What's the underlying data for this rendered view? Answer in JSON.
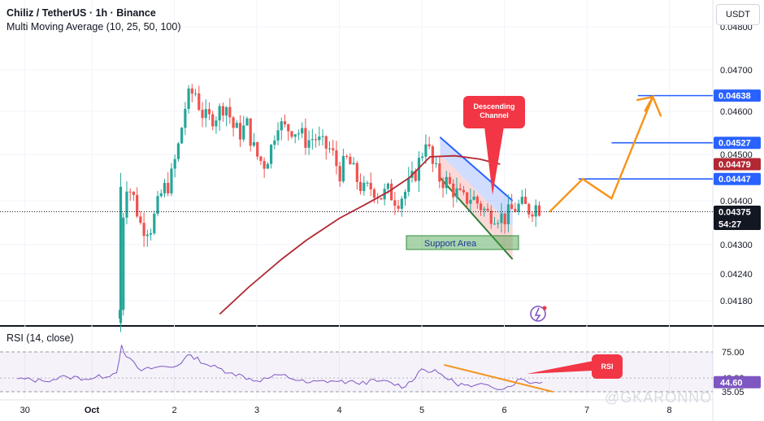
{
  "header": {
    "symbol_line": "Chiliz / TetherUS · 1h · Binance",
    "indicator_line": "Multi Moving Average (10, 25, 50, 100)",
    "rsi_label": "RSI (14, close)",
    "currency_button": "USDT"
  },
  "watermark": "@GKARONNO",
  "colors": {
    "up": "#26a69a",
    "down": "#ef5350",
    "ma": "#b22833",
    "projection": "#f7931a",
    "level": "#2962ff",
    "rsi_line": "#7e57c2",
    "support": "#43a047",
    "callout": "#f23645"
  },
  "chart_data": {
    "type": "candlestick",
    "y_ticks": [
      "0.04800",
      "0.04700",
      "0.04600",
      "0.04500",
      "0.04400",
      "0.04300",
      "0.04240",
      "0.04180"
    ],
    "x_ticks": [
      "30",
      "Oct",
      "2",
      "3",
      "4",
      "5",
      "6",
      "7",
      "8"
    ],
    "price_labels": [
      {
        "text": "0.04638",
        "value": 0.04638,
        "kind": "level"
      },
      {
        "text": "0.04527",
        "value": 0.04527,
        "kind": "level"
      },
      {
        "text": "0.04479",
        "value": 0.04479,
        "kind": "ma"
      },
      {
        "text": "0.04447",
        "value": 0.04447,
        "kind": "level"
      },
      {
        "text": "0.04375",
        "value": 0.04375,
        "kind": "last"
      }
    ],
    "countdown": "54:27",
    "horizontal_levels": [
      {
        "value": 0.04638,
        "from_day": 6.62
      },
      {
        "value": 0.04527,
        "from_day": 6.3
      },
      {
        "value": 0.04447,
        "from_day": 5.9
      }
    ],
    "close_series": [
      {
        "t": 0.34,
        "v": 0.0416
      },
      {
        "t": 0.38,
        "v": 0.0437
      },
      {
        "t": 0.42,
        "v": 0.0444
      },
      {
        "t": 0.5,
        "v": 0.0441
      },
      {
        "t": 0.6,
        "v": 0.0434
      },
      {
        "t": 0.72,
        "v": 0.0434
      },
      {
        "t": 0.85,
        "v": 0.0442
      },
      {
        "t": 0.95,
        "v": 0.0444
      },
      {
        "t": 1.05,
        "v": 0.0452
      },
      {
        "t": 1.15,
        "v": 0.0463
      },
      {
        "t": 1.25,
        "v": 0.0465
      },
      {
        "t": 1.32,
        "v": 0.046
      },
      {
        "t": 1.4,
        "v": 0.0458
      },
      {
        "t": 1.5,
        "v": 0.0459
      },
      {
        "t": 1.62,
        "v": 0.0462
      },
      {
        "t": 1.72,
        "v": 0.0456
      },
      {
        "t": 1.8,
        "v": 0.0455
      },
      {
        "t": 1.88,
        "v": 0.0457
      },
      {
        "t": 1.95,
        "v": 0.0452
      },
      {
        "t": 2.02,
        "v": 0.0449
      },
      {
        "t": 2.1,
        "v": 0.0448
      },
      {
        "t": 2.18,
        "v": 0.0452
      },
      {
        "t": 2.25,
        "v": 0.0458
      },
      {
        "t": 2.32,
        "v": 0.0456
      },
      {
        "t": 2.42,
        "v": 0.0456
      },
      {
        "t": 2.52,
        "v": 0.0455
      },
      {
        "t": 2.6,
        "v": 0.0453
      },
      {
        "t": 2.7,
        "v": 0.0454
      },
      {
        "t": 2.8,
        "v": 0.0452
      },
      {
        "t": 2.9,
        "v": 0.0451
      },
      {
        "t": 3.0,
        "v": 0.0446
      },
      {
        "t": 3.1,
        "v": 0.0449
      },
      {
        "t": 3.2,
        "v": 0.0445
      },
      {
        "t": 3.3,
        "v": 0.0442
      },
      {
        "t": 3.4,
        "v": 0.0443
      },
      {
        "t": 3.5,
        "v": 0.0441
      },
      {
        "t": 3.6,
        "v": 0.0442
      },
      {
        "t": 3.7,
        "v": 0.044
      },
      {
        "t": 3.8,
        "v": 0.0442
      },
      {
        "t": 3.9,
        "v": 0.0445
      },
      {
        "t": 4.0,
        "v": 0.045
      },
      {
        "t": 4.05,
        "v": 0.0454
      },
      {
        "t": 4.12,
        "v": 0.0448
      },
      {
        "t": 4.2,
        "v": 0.0445
      },
      {
        "t": 4.3,
        "v": 0.0444
      },
      {
        "t": 4.4,
        "v": 0.0442
      },
      {
        "t": 4.5,
        "v": 0.044
      },
      {
        "t": 4.6,
        "v": 0.0441
      },
      {
        "t": 4.7,
        "v": 0.0439
      },
      {
        "t": 4.8,
        "v": 0.0437
      },
      {
        "t": 4.9,
        "v": 0.0437
      },
      {
        "t": 5.0,
        "v": 0.0436
      },
      {
        "t": 5.1,
        "v": 0.0438
      },
      {
        "t": 5.2,
        "v": 0.0439
      },
      {
        "t": 5.3,
        "v": 0.0438
      },
      {
        "t": 5.4,
        "v": 0.0439
      },
      {
        "t": 5.46,
        "v": 0.04375
      }
    ],
    "moving_average": [
      {
        "t": 1.55,
        "v": 0.0415
      },
      {
        "t": 1.9,
        "v": 0.0421
      },
      {
        "t": 2.3,
        "v": 0.0427
      },
      {
        "t": 2.6,
        "v": 0.0431
      },
      {
        "t": 3.0,
        "v": 0.0436
      },
      {
        "t": 3.3,
        "v": 0.0439
      },
      {
        "t": 3.6,
        "v": 0.0442
      },
      {
        "t": 3.85,
        "v": 0.0445
      },
      {
        "t": 4.1,
        "v": 0.04495
      },
      {
        "t": 4.4,
        "v": 0.04497
      },
      {
        "t": 4.7,
        "v": 0.0449
      },
      {
        "t": 4.95,
        "v": 0.04479
      }
    ],
    "projection": [
      {
        "t": 5.55,
        "v": 0.04375
      },
      {
        "t": 5.95,
        "v": 0.04447
      },
      {
        "t": 6.3,
        "v": 0.04405
      },
      {
        "t": 6.8,
        "v": 0.04635
      },
      {
        "t": 6.9,
        "v": 0.04588
      }
    ],
    "channel": {
      "upper": [
        {
          "t": 4.22,
          "v": 0.0454
        },
        {
          "t": 5.1,
          "v": 0.044
        }
      ],
      "lower": [
        {
          "t": 4.22,
          "v": 0.0445
        },
        {
          "t": 5.1,
          "v": 0.0427
        }
      ]
    },
    "annotations": {
      "descending_channel": "Descending Channel",
      "support_area": "Support Area",
      "rsi_tag": "RSI"
    },
    "rsi": {
      "ticks": [
        "75.00",
        "48.82",
        "35.05"
      ],
      "current_label": "44.60",
      "values": [
        {
          "t": -0.9,
          "v": 48
        },
        {
          "t": -0.6,
          "v": 46
        },
        {
          "t": -0.3,
          "v": 50
        },
        {
          "t": 0.0,
          "v": 48
        },
        {
          "t": 0.3,
          "v": 54
        },
        {
          "t": 0.36,
          "v": 82
        },
        {
          "t": 0.42,
          "v": 70
        },
        {
          "t": 0.6,
          "v": 56
        },
        {
          "t": 0.8,
          "v": 60
        },
        {
          "t": 1.0,
          "v": 60
        },
        {
          "t": 1.2,
          "v": 72
        },
        {
          "t": 1.4,
          "v": 62
        },
        {
          "t": 1.7,
          "v": 54
        },
        {
          "t": 2.0,
          "v": 46
        },
        {
          "t": 2.3,
          "v": 52
        },
        {
          "t": 2.6,
          "v": 44
        },
        {
          "t": 2.9,
          "v": 46
        },
        {
          "t": 3.2,
          "v": 44
        },
        {
          "t": 3.5,
          "v": 46
        },
        {
          "t": 3.8,
          "v": 40
        },
        {
          "t": 4.0,
          "v": 58
        },
        {
          "t": 4.2,
          "v": 54
        },
        {
          "t": 4.4,
          "v": 44
        },
        {
          "t": 4.6,
          "v": 40
        },
        {
          "t": 4.8,
          "v": 42
        },
        {
          "t": 5.0,
          "v": 38
        },
        {
          "t": 5.2,
          "v": 48
        },
        {
          "t": 5.35,
          "v": 44
        },
        {
          "t": 5.46,
          "v": 44.6
        }
      ],
      "divergence": [
        {
          "t": 4.27,
          "v": 62
        },
        {
          "t": 5.59,
          "v": 35
        }
      ]
    }
  }
}
